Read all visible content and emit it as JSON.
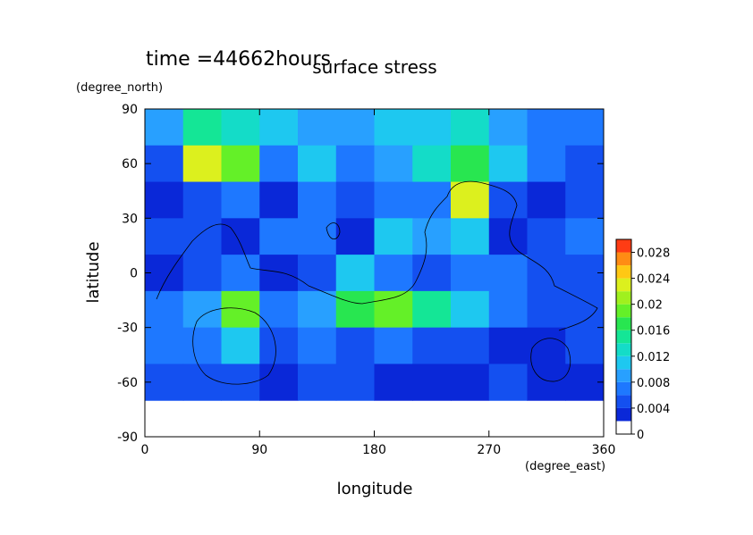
{
  "chart_data": {
    "type": "heatmap",
    "title": "surface stress",
    "subtitle": "time =44662hours",
    "x_label": "longitude",
    "y_label": "latitude",
    "x_unit": "(degree_east)",
    "y_unit": "(degree_north)",
    "xlim": [
      0,
      360
    ],
    "ylim": [
      -90,
      90
    ],
    "xticks": [
      0,
      90,
      180,
      270,
      360
    ],
    "yticks": [
      -90,
      -60,
      -30,
      0,
      30,
      60,
      90
    ],
    "x": [
      15,
      45,
      75,
      105,
      135,
      165,
      195,
      225,
      255,
      285,
      315,
      345
    ],
    "y": [
      80,
      60,
      40,
      20,
      0,
      -20,
      -40,
      -60
    ],
    "z": [
      [
        0.008,
        0.014,
        0.012,
        0.01,
        0.008,
        0.008,
        0.01,
        0.01,
        0.012,
        0.008,
        0.006,
        0.006
      ],
      [
        0.004,
        0.022,
        0.018,
        0.006,
        0.01,
        0.006,
        0.008,
        0.012,
        0.016,
        0.01,
        0.006,
        0.004
      ],
      [
        0.002,
        0.004,
        0.006,
        0.002,
        0.006,
        0.004,
        0.006,
        0.006,
        0.022,
        0.004,
        0.002,
        0.004
      ],
      [
        0.004,
        0.004,
        0.002,
        0.006,
        0.006,
        0.002,
        0.01,
        0.008,
        0.01,
        0.002,
        0.004,
        0.006
      ],
      [
        0.002,
        0.004,
        0.006,
        0.002,
        0.004,
        0.01,
        0.006,
        0.004,
        0.006,
        0.006,
        0.004,
        0.004
      ],
      [
        0.006,
        0.008,
        0.018,
        0.006,
        0.008,
        0.016,
        0.018,
        0.014,
        0.01,
        0.006,
        0.004,
        0.004
      ],
      [
        0.006,
        0.006,
        0.01,
        0.004,
        0.006,
        0.004,
        0.006,
        0.004,
        0.004,
        0.002,
        0.002,
        0.004
      ],
      [
        0.004,
        0.004,
        0.004,
        0.002,
        0.004,
        0.004,
        0.002,
        0.002,
        0.002,
        0.004,
        0.002,
        0.002
      ]
    ],
    "colorbar": {
      "levels": [
        0,
        0.002,
        0.004,
        0.006,
        0.008,
        0.01,
        0.012,
        0.014,
        0.016,
        0.018,
        0.02,
        0.022,
        0.024,
        0.026,
        0.028,
        0.03
      ],
      "colors": [
        "#ffffff",
        "#0a28d8",
        "#1450f0",
        "#1e78ff",
        "#28a0ff",
        "#1ec8f0",
        "#14dcc8",
        "#14e696",
        "#28e650",
        "#64f028",
        "#a0f01e",
        "#dcf01e",
        "#ffc814",
        "#ff8c14",
        "#ff3c14"
      ],
      "ticks": [
        0,
        0.004,
        0.008,
        0.012,
        0.016,
        0.02,
        0.024,
        0.028
      ]
    }
  }
}
